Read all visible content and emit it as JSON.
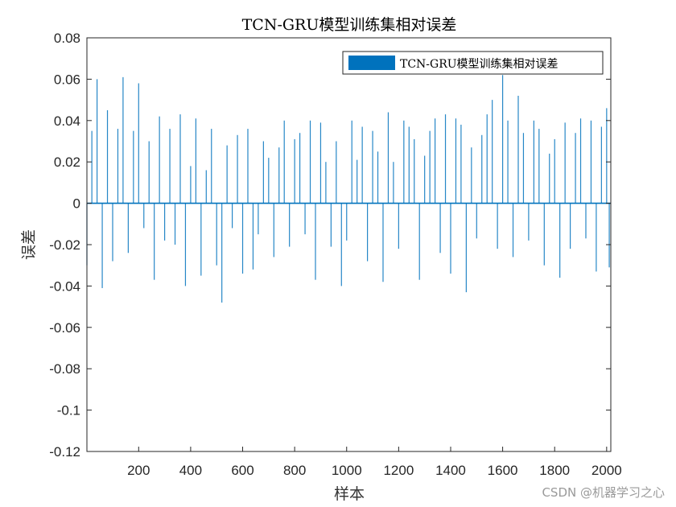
{
  "chart_data": {
    "type": "bar",
    "title": "TCN-GRU模型训练集相对误差",
    "xlabel": "样本",
    "ylabel": "误差",
    "xlim": [
      1,
      2016
    ],
    "ylim": [
      -0.12,
      0.08
    ],
    "xticks": [
      200,
      400,
      600,
      800,
      1000,
      1200,
      1400,
      1600,
      1800,
      2000
    ],
    "xtick_labels": [
      "200",
      "400",
      "600",
      "800",
      "1000",
      "1200",
      "1400",
      "1600",
      "1800",
      "2000"
    ],
    "yticks": [
      0.08,
      0.06,
      0.04,
      0.02,
      0,
      -0.02,
      -0.04,
      -0.06,
      -0.08,
      -0.1,
      -0.12
    ],
    "ytick_labels": [
      "0.08",
      "0.06",
      "0.04",
      "0.02",
      "0",
      "-0.02",
      "-0.04",
      "-0.06",
      "-0.08",
      "-0.1",
      "-0.12"
    ],
    "legend": {
      "label": "TCN-GRU模型训练集相对误差",
      "position": "top-right"
    },
    "grid": false,
    "series": [
      {
        "name": "TCN-GRU模型训练集相对误差",
        "color": "#0072BD",
        "x": [
          1,
          20,
          40,
          60,
          80,
          100,
          120,
          140,
          160,
          180,
          200,
          220,
          240,
          260,
          280,
          300,
          320,
          340,
          360,
          380,
          400,
          420,
          440,
          460,
          480,
          500,
          520,
          540,
          560,
          580,
          600,
          620,
          640,
          660,
          680,
          700,
          720,
          740,
          760,
          780,
          800,
          820,
          840,
          860,
          880,
          900,
          920,
          940,
          960,
          980,
          1000,
          1020,
          1040,
          1060,
          1080,
          1100,
          1120,
          1140,
          1160,
          1180,
          1200,
          1220,
          1240,
          1260,
          1280,
          1300,
          1320,
          1340,
          1360,
          1380,
          1400,
          1420,
          1440,
          1460,
          1480,
          1500,
          1520,
          1540,
          1560,
          1580,
          1600,
          1620,
          1640,
          1660,
          1680,
          1700,
          1720,
          1740,
          1760,
          1780,
          1800,
          1820,
          1840,
          1860,
          1880,
          1900,
          1920,
          1940,
          1960,
          1980,
          2000,
          2010
        ],
        "values": [
          -0.03,
          0.035,
          0.06,
          -0.041,
          0.045,
          -0.028,
          0.036,
          0.061,
          -0.024,
          0.035,
          0.058,
          -0.012,
          0.03,
          -0.037,
          0.042,
          -0.018,
          0.036,
          -0.02,
          0.043,
          -0.04,
          0.018,
          0.041,
          -0.035,
          0.016,
          0.036,
          -0.03,
          -0.048,
          0.028,
          -0.012,
          0.033,
          -0.034,
          0.036,
          -0.032,
          -0.015,
          0.03,
          0.022,
          -0.026,
          0.027,
          0.04,
          -0.021,
          0.031,
          0.034,
          -0.015,
          0.04,
          -0.037,
          0.039,
          0.02,
          -0.021,
          0.03,
          -0.04,
          -0.018,
          0.04,
          0.021,
          0.037,
          -0.028,
          0.035,
          0.025,
          -0.038,
          0.044,
          0.02,
          -0.022,
          0.04,
          0.037,
          0.031,
          -0.037,
          0.023,
          0.035,
          0.041,
          -0.024,
          0.043,
          -0.034,
          0.041,
          0.038,
          -0.043,
          0.027,
          -0.017,
          0.033,
          0.043,
          0.05,
          -0.022,
          0.062,
          0.04,
          -0.026,
          0.052,
          0.034,
          -0.018,
          0.04,
          0.036,
          -0.03,
          0.024,
          0.031,
          -0.036,
          0.039,
          -0.022,
          0.034,
          0.041,
          -0.017,
          0.04,
          -0.033,
          0.037,
          0.046,
          -0.031
        ]
      }
    ]
  },
  "watermark": "CSDN @机器学习之心"
}
